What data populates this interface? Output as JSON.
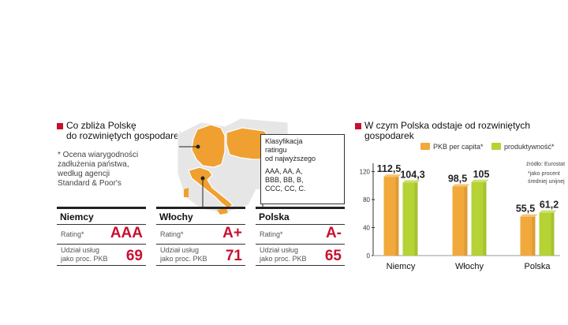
{
  "left": {
    "title_line1": "Co zbliża Polskę",
    "title_line2": "do rozwiniętych gospodarek",
    "note_line1": "* Ocena wiarygodności",
    "note_line2": "zadłużenia państwa,",
    "note_line3": "według agencji",
    "note_line4": "Standard & Poor's",
    "legend": {
      "title_line1": "Klasyfikacja",
      "title_line2": "ratingu",
      "title_line3": "od najwyższego",
      "scale_line1": "AAA, AA, A,",
      "scale_line2": "BBB, BB, B,",
      "scale_line3": "CCC, CC, C."
    },
    "cards": [
      {
        "country": "Niemcy",
        "rating_label": "Rating*",
        "rating": "AAA",
        "share_label_1": "Udział usług",
        "share_label_2": "jako proc. PKB",
        "share": "69"
      },
      {
        "country": "Włochy",
        "rating_label": "Rating*",
        "rating": "A+",
        "share_label_1": "Udział usług",
        "share_label_2": "jako proc. PKB",
        "share": "71"
      },
      {
        "country": "Polska",
        "rating_label": "Rating*",
        "rating": "A-",
        "share_label_1": "Udział usług",
        "share_label_2": "jako proc. PKB",
        "share": "65"
      }
    ],
    "colors": {
      "accent": "#c8102e",
      "map_highlight": "#f0a030",
      "map_base": "#e6e6e6"
    }
  },
  "chart_data": {
    "type": "bar",
    "title": "W czym Polska odstaje od rozwiniętych gospodarek",
    "categories": [
      "Niemcy",
      "Włochy",
      "Polska"
    ],
    "series": [
      {
        "name": "PKB per capita*",
        "values": [
          112.5,
          98.5,
          55.5
        ],
        "labels": [
          "112,5",
          "98,5",
          "55,5"
        ],
        "color": "#f2a93b"
      },
      {
        "name": "produktywność*",
        "values": [
          104.3,
          105,
          61.2
        ],
        "labels": [
          "104,3",
          "105",
          "61,2"
        ],
        "color": "#b5d334"
      }
    ],
    "yticks": [
      0,
      40,
      80,
      120
    ],
    "ylim": [
      0,
      125
    ],
    "grid": false,
    "legend_position": "top",
    "source": "źródło: Eurostat",
    "footnote_line1": "*jako procent",
    "footnote_line2": "średniej unijnej"
  }
}
